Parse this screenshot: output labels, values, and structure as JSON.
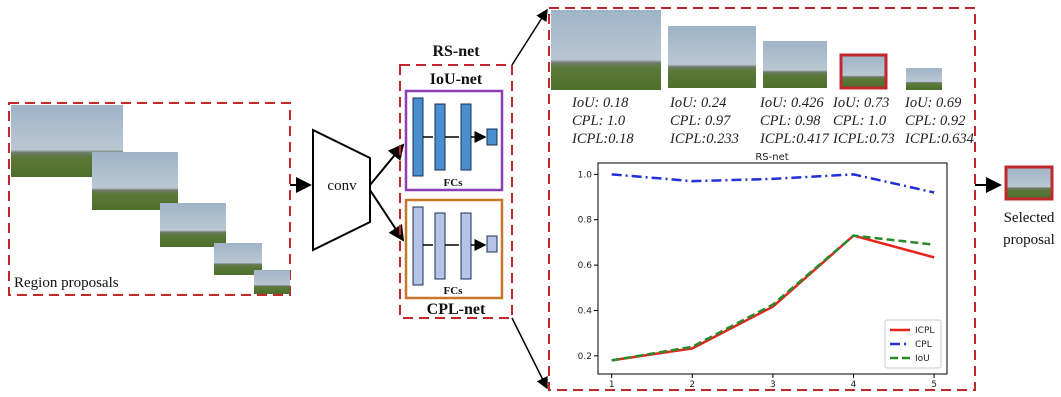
{
  "diagram": {
    "region_label": "Region proposals",
    "conv": "conv",
    "rsnet_title": "RS-net",
    "iou_net": "IoU-net",
    "cpl_net": "CPL-net",
    "fcs_top": "FCs",
    "fcs_bottom": "FCs",
    "proposals": [
      {
        "iou": "IoU: 0.18",
        "cpl": "CPL: 1.0",
        "icpl": "ICPL:0.18"
      },
      {
        "iou": "IoU: 0.24",
        "cpl": "CPL: 0.97",
        "icpl": "ICPL:0.233"
      },
      {
        "iou": "IoU: 0.426",
        "cpl": "CPL: 0.98",
        "icpl": "ICPL:0.417"
      },
      {
        "iou": "IoU: 0.73",
        "cpl": "CPL: 1.0",
        "icpl": "ICPL:0.73"
      },
      {
        "iou": "IoU: 0.69",
        "cpl": "CPL: 0.92",
        "icpl": "ICPL:0.634"
      }
    ],
    "selected_1": "Selected",
    "selected_2": "proposal"
  },
  "chart_data": {
    "type": "line",
    "title": "RS-net",
    "x": [
      1,
      2,
      3,
      4,
      5
    ],
    "series": [
      {
        "name": "ICPL",
        "color": "#e8221c",
        "linestyle": "solid",
        "values": [
          0.18,
          0.233,
          0.417,
          0.73,
          0.634
        ]
      },
      {
        "name": "CPL",
        "color": "#2130d8",
        "linestyle": "dashdot",
        "values": [
          1.0,
          0.97,
          0.98,
          1.0,
          0.92
        ]
      },
      {
        "name": "IoU",
        "color": "#2a8a2a",
        "linestyle": "dashed",
        "values": [
          0.18,
          0.24,
          0.426,
          0.73,
          0.69
        ]
      }
    ],
    "xlim": [
      0.83,
      5.16
    ],
    "ylim": [
      0.12,
      1.05
    ],
    "xticks": [
      1,
      2,
      3,
      4,
      5
    ],
    "yticks": [
      0.2,
      0.4,
      0.6,
      0.8,
      {
        "value": 1,
        "label": "1.0"
      }
    ],
    "grid": false,
    "legend": "lower right"
  }
}
